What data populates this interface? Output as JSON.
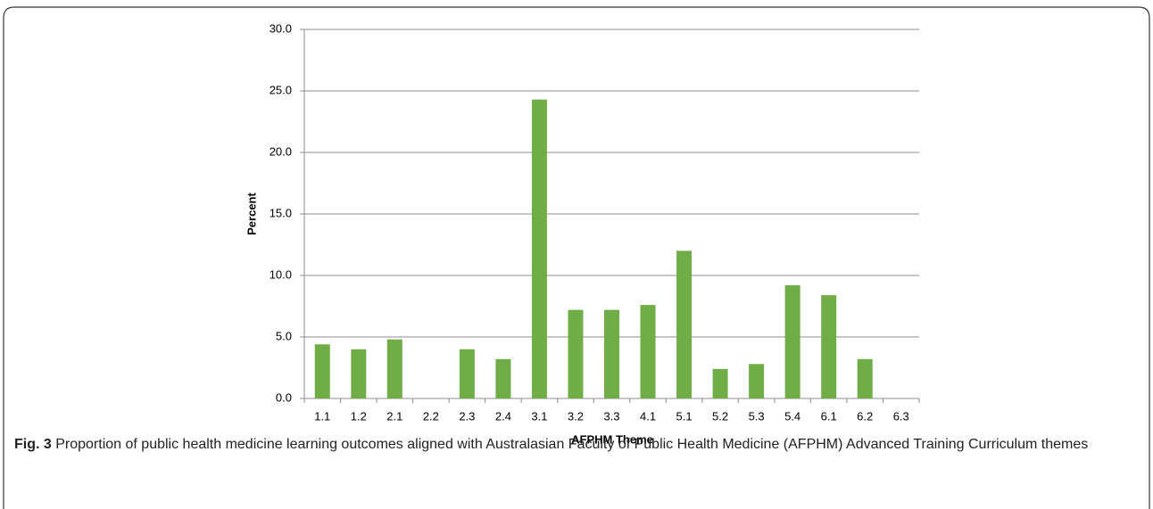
{
  "chart_data": {
    "type": "bar",
    "x_label": "AFPHM Theme",
    "y_label": "Percent",
    "caption_label": "Fig. 3",
    "caption": "Proportion of public health medicine learning outcomes aligned with Australasian Faculty of Public Health Medicine (AFPHM) Advanced Training Curriculum themes",
    "categories": [
      "1.1",
      "1.2",
      "2.1",
      "2.2",
      "2.3",
      "2.4",
      "3.1",
      "3.2",
      "3.3",
      "4.1",
      "5.1",
      "5.2",
      "5.3",
      "5.4",
      "6.1",
      "6.2",
      "6.3"
    ],
    "values": [
      4.4,
      4.0,
      4.8,
      0,
      4.0,
      3.2,
      24.3,
      7.2,
      7.2,
      7.6,
      12.0,
      2.4,
      2.8,
      9.2,
      8.4,
      3.2,
      0
    ],
    "color": "#70ad47",
    "ylim": [
      0,
      30
    ],
    "yticks": [
      {
        "value": 0,
        "label": "0.0"
      },
      {
        "value": 5,
        "label": "5.0"
      },
      {
        "value": 10,
        "label": "10.0"
      },
      {
        "value": 15,
        "label": "15.0"
      },
      {
        "value": 20,
        "label": "20.0"
      },
      {
        "value": 25,
        "label": "25.0"
      },
      {
        "value": 30,
        "label": "30.0"
      }
    ],
    "grid": true
  }
}
